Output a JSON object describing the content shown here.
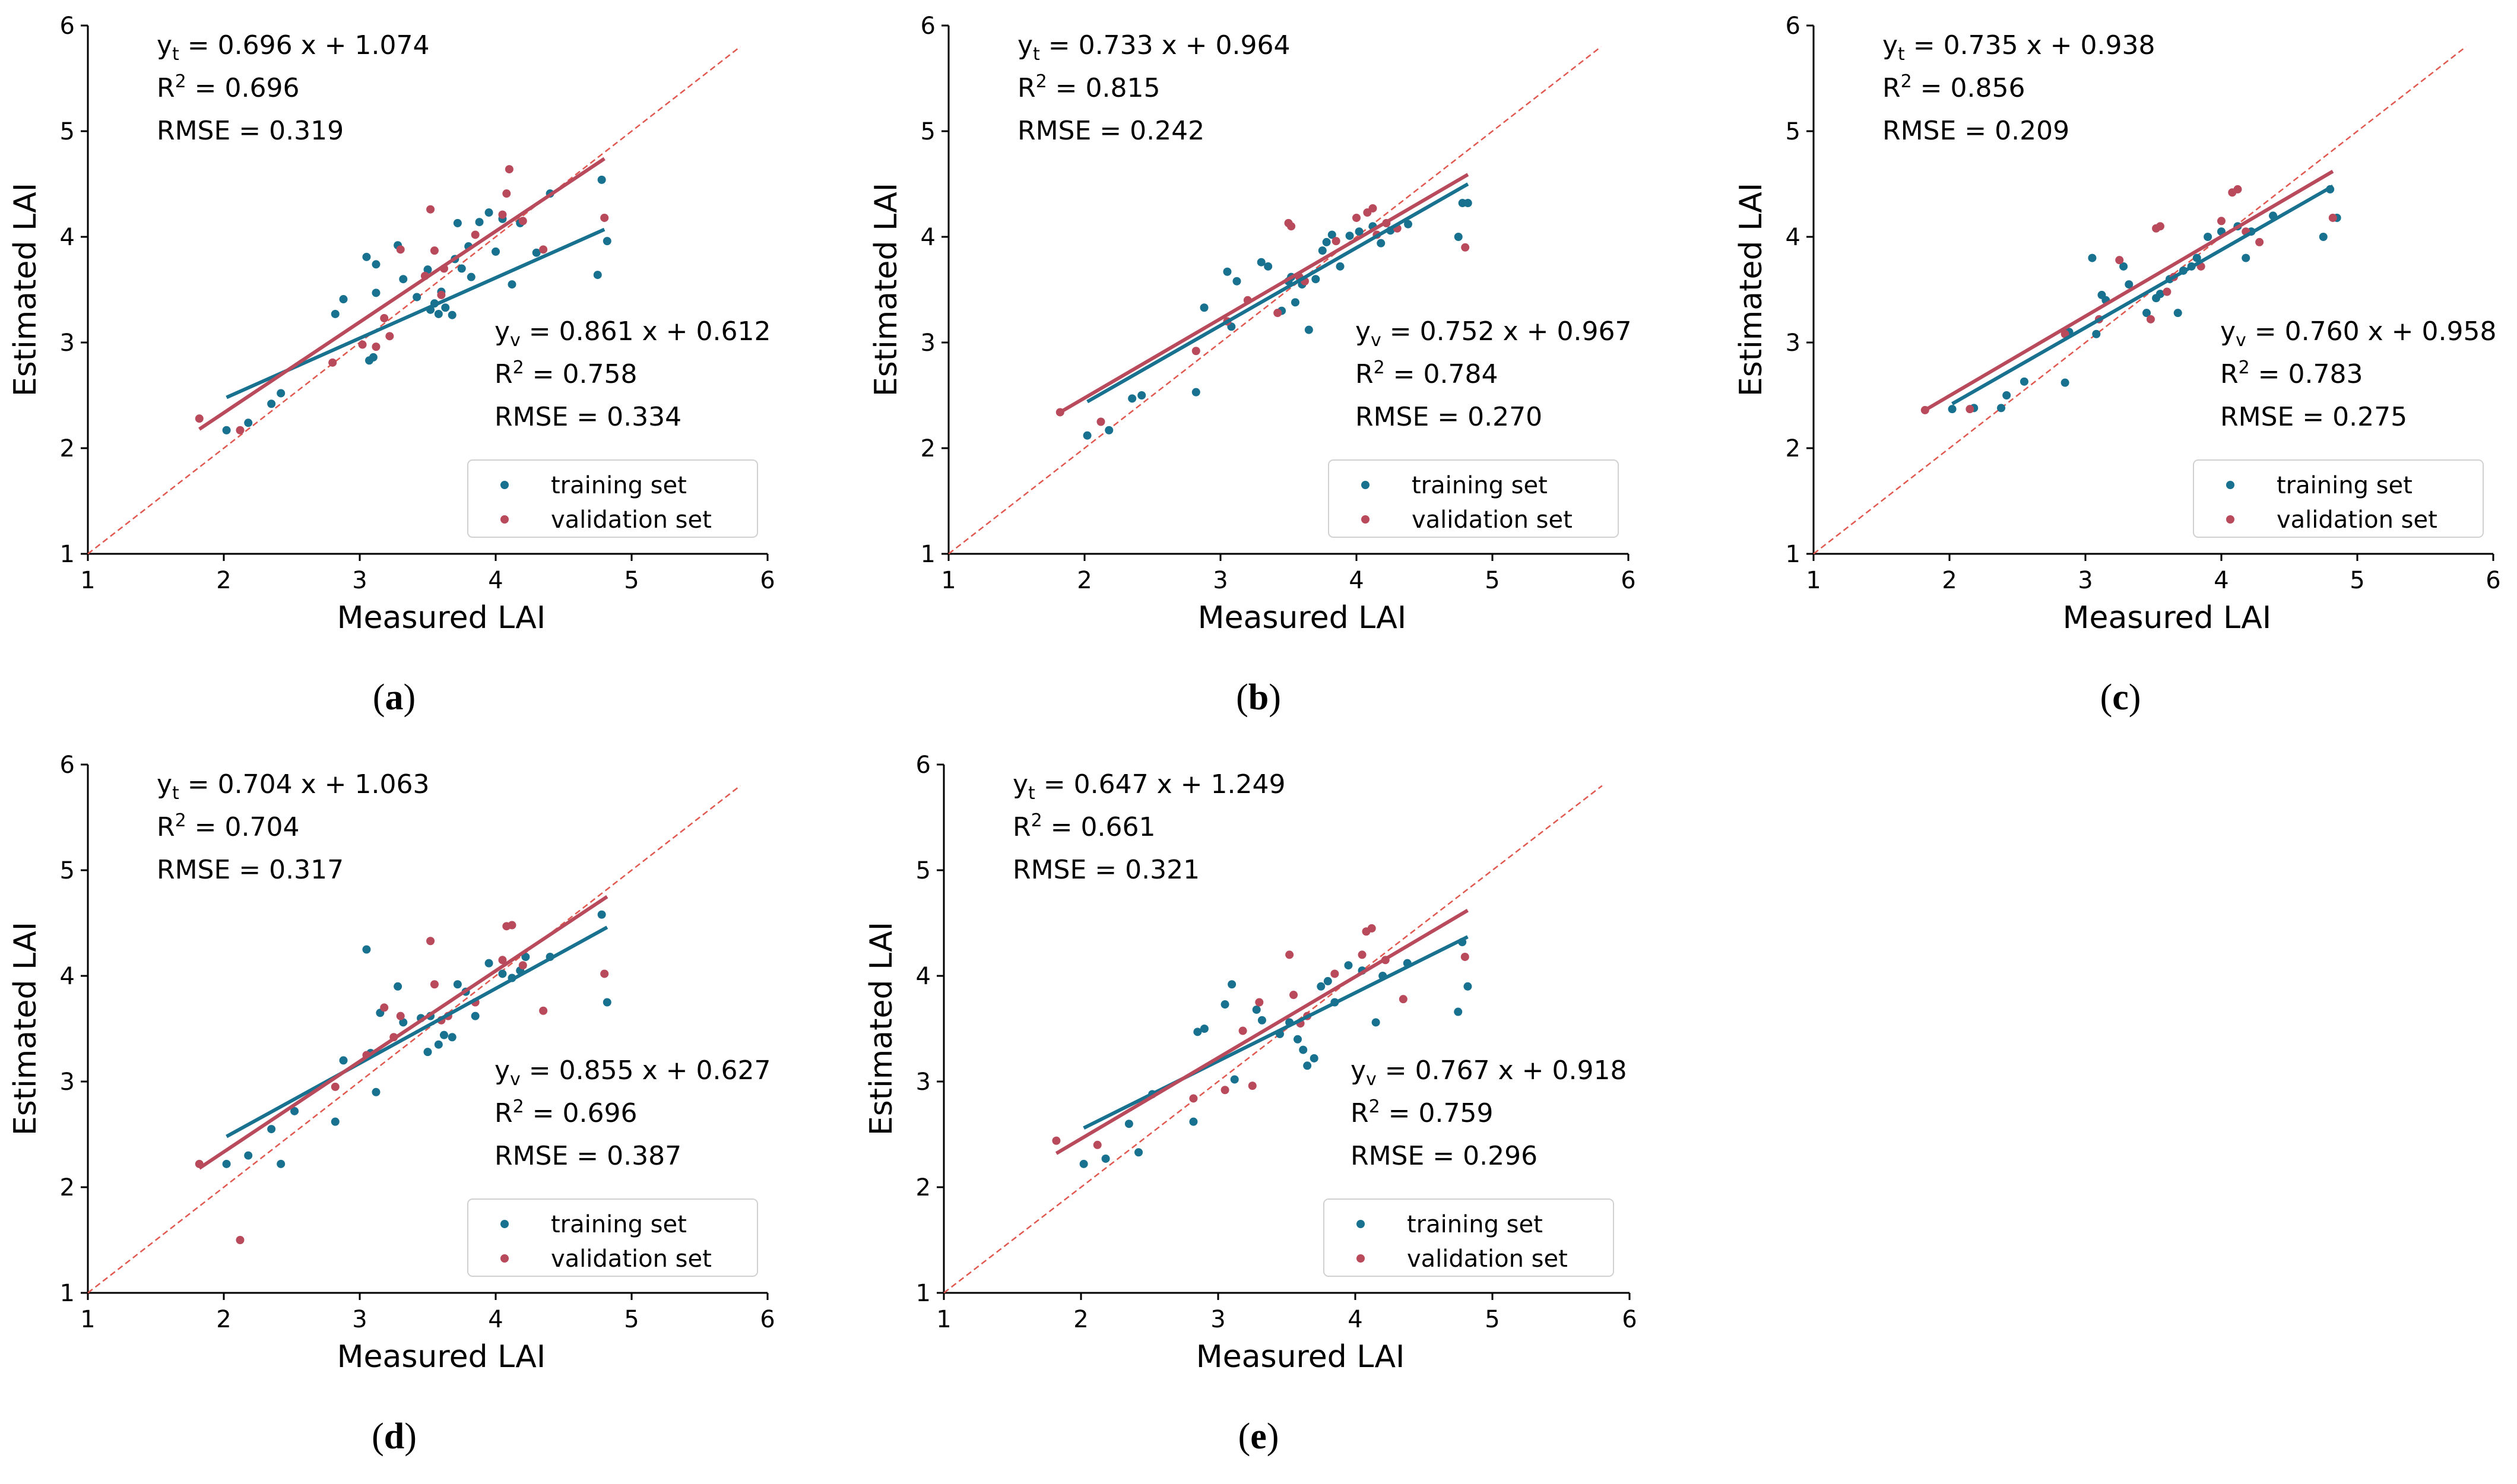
{
  "figure": {
    "panel_letters": [
      "a",
      "b",
      "c",
      "d",
      "e"
    ]
  },
  "colors": {
    "training": "#17718f",
    "validation": "#b84a5c",
    "identity": "#e0584f",
    "axis": "#000000"
  },
  "legend": {
    "training_label": "training set",
    "validation_label": "validation set"
  },
  "chart_data": [
    {
      "type": "scatter",
      "panel": "a",
      "xlabel": "Measured LAI",
      "ylabel": "Estimated LAI",
      "xlim": [
        1,
        6
      ],
      "ylim": [
        1,
        6
      ],
      "xticks": [
        1,
        2,
        3,
        4,
        5,
        6
      ],
      "yticks": [
        1,
        2,
        3,
        4,
        5,
        6
      ],
      "identity_line": [
        [
          1,
          1
        ],
        [
          5.8,
          5.8
        ]
      ],
      "training_eq": {
        "slope": "0.696",
        "intercept": "1.074",
        "r2": "0.696",
        "rmse": "0.319"
      },
      "validation_eq": {
        "slope": "0.861",
        "intercept": "0.612",
        "r2": "0.758",
        "rmse": "0.334"
      },
      "training_fit": [
        [
          2.02,
          2.48
        ],
        [
          4.8,
          4.07
        ]
      ],
      "validation_fit": [
        [
          1.82,
          2.18
        ],
        [
          4.8,
          4.74
        ]
      ],
      "training": [
        [
          2.02,
          2.17
        ],
        [
          2.18,
          2.24
        ],
        [
          2.35,
          2.42
        ],
        [
          2.42,
          2.52
        ],
        [
          2.82,
          3.27
        ],
        [
          2.88,
          3.41
        ],
        [
          3.05,
          3.81
        ],
        [
          3.07,
          2.83
        ],
        [
          3.1,
          2.86
        ],
        [
          3.12,
          3.74
        ],
        [
          3.12,
          3.47
        ],
        [
          3.28,
          3.92
        ],
        [
          3.32,
          3.6
        ],
        [
          3.42,
          3.43
        ],
        [
          3.5,
          3.69
        ],
        [
          3.52,
          3.31
        ],
        [
          3.55,
          3.37
        ],
        [
          3.58,
          3.27
        ],
        [
          3.6,
          3.48
        ],
        [
          3.63,
          3.33
        ],
        [
          3.68,
          3.26
        ],
        [
          3.7,
          3.79
        ],
        [
          3.72,
          4.13
        ],
        [
          3.75,
          3.7
        ],
        [
          3.8,
          3.91
        ],
        [
          3.82,
          3.62
        ],
        [
          3.88,
          4.14
        ],
        [
          3.95,
          4.23
        ],
        [
          4.0,
          3.86
        ],
        [
          4.05,
          4.17
        ],
        [
          4.12,
          3.55
        ],
        [
          4.18,
          4.13
        ],
        [
          4.3,
          3.85
        ],
        [
          4.4,
          4.41
        ],
        [
          4.75,
          3.64
        ],
        [
          4.78,
          4.54
        ],
        [
          4.82,
          3.96
        ]
      ],
      "validation": [
        [
          1.82,
          2.28
        ],
        [
          2.12,
          2.17
        ],
        [
          2.8,
          2.81
        ],
        [
          3.02,
          2.98
        ],
        [
          3.12,
          2.96
        ],
        [
          3.18,
          3.23
        ],
        [
          3.22,
          3.06
        ],
        [
          3.3,
          3.88
        ],
        [
          3.48,
          3.63
        ],
        [
          3.52,
          4.26
        ],
        [
          3.55,
          3.87
        ],
        [
          3.6,
          3.45
        ],
        [
          3.62,
          3.7
        ],
        [
          3.85,
          4.02
        ],
        [
          4.05,
          4.21
        ],
        [
          4.08,
          4.41
        ],
        [
          4.1,
          4.64
        ],
        [
          4.2,
          4.15
        ],
        [
          4.35,
          3.88
        ],
        [
          4.8,
          4.18
        ]
      ]
    },
    {
      "type": "scatter",
      "panel": "b",
      "xlabel": "Measured LAI",
      "ylabel": "Estimated LAI",
      "xlim": [
        1,
        6
      ],
      "ylim": [
        1,
        6
      ],
      "xticks": [
        1,
        2,
        3,
        4,
        5,
        6
      ],
      "yticks": [
        1,
        2,
        3,
        4,
        5,
        6
      ],
      "identity_line": [
        [
          1,
          1
        ],
        [
          5.8,
          5.8
        ]
      ],
      "training_eq": {
        "slope": "0.733",
        "intercept": "0.964",
        "r2": "0.815",
        "rmse": "0.242"
      },
      "validation_eq": {
        "slope": "0.752",
        "intercept": "0.967",
        "r2": "0.784",
        "rmse": "0.270"
      },
      "training_fit": [
        [
          2.02,
          2.44
        ],
        [
          4.82,
          4.5
        ]
      ],
      "validation_fit": [
        [
          1.82,
          2.34
        ],
        [
          4.82,
          4.59
        ]
      ],
      "training": [
        [
          2.02,
          2.12
        ],
        [
          2.18,
          2.17
        ],
        [
          2.35,
          2.47
        ],
        [
          2.42,
          2.5
        ],
        [
          2.82,
          2.53
        ],
        [
          2.88,
          3.33
        ],
        [
          3.05,
          3.67
        ],
        [
          3.08,
          3.15
        ],
        [
          3.12,
          3.58
        ],
        [
          3.3,
          3.76
        ],
        [
          3.35,
          3.72
        ],
        [
          3.45,
          3.3
        ],
        [
          3.5,
          3.58
        ],
        [
          3.52,
          3.62
        ],
        [
          3.55,
          3.38
        ],
        [
          3.6,
          3.55
        ],
        [
          3.65,
          3.12
        ],
        [
          3.7,
          3.6
        ],
        [
          3.75,
          3.87
        ],
        [
          3.78,
          3.95
        ],
        [
          3.82,
          4.02
        ],
        [
          3.88,
          3.72
        ],
        [
          3.95,
          4.01
        ],
        [
          4.02,
          4.05
        ],
        [
          4.12,
          4.1
        ],
        [
          4.18,
          3.94
        ],
        [
          4.25,
          4.06
        ],
        [
          4.38,
          4.12
        ],
        [
          4.75,
          4.0
        ],
        [
          4.78,
          4.32
        ],
        [
          4.82,
          4.32
        ]
      ],
      "validation": [
        [
          1.82,
          2.34
        ],
        [
          2.12,
          2.25
        ],
        [
          2.82,
          2.92
        ],
        [
          3.05,
          3.2
        ],
        [
          3.2,
          3.4
        ],
        [
          3.42,
          3.28
        ],
        [
          3.5,
          4.13
        ],
        [
          3.52,
          4.1
        ],
        [
          3.58,
          3.62
        ],
        [
          3.62,
          3.58
        ],
        [
          3.85,
          3.96
        ],
        [
          4.0,
          4.18
        ],
        [
          4.08,
          4.23
        ],
        [
          4.12,
          4.27
        ],
        [
          4.15,
          4.02
        ],
        [
          4.22,
          4.13
        ],
        [
          4.3,
          4.08
        ],
        [
          4.8,
          3.9
        ]
      ]
    },
    {
      "type": "scatter",
      "panel": "c",
      "xlabel": "Measured LAI",
      "ylabel": "Estimated LAI",
      "xlim": [
        1,
        6
      ],
      "ylim": [
        1,
        6
      ],
      "xticks": [
        1,
        2,
        3,
        4,
        5,
        6
      ],
      "yticks": [
        1,
        2,
        3,
        4,
        5,
        6
      ],
      "identity_line": [
        [
          1,
          1
        ],
        [
          5.8,
          5.8
        ]
      ],
      "training_eq": {
        "slope": "0.735",
        "intercept": "0.938",
        "r2": "0.856",
        "rmse": "0.209"
      },
      "validation_eq": {
        "slope": "0.760",
        "intercept": "0.958",
        "r2": "0.783",
        "rmse": "0.275"
      },
      "training_fit": [
        [
          2.02,
          2.42
        ],
        [
          4.82,
          4.48
        ]
      ],
      "validation_fit": [
        [
          1.82,
          2.36
        ],
        [
          4.82,
          4.62
        ]
      ],
      "training": [
        [
          2.02,
          2.37
        ],
        [
          2.18,
          2.38
        ],
        [
          2.38,
          2.38
        ],
        [
          2.42,
          2.5
        ],
        [
          2.55,
          2.63
        ],
        [
          2.85,
          2.62
        ],
        [
          2.88,
          3.1
        ],
        [
          3.05,
          3.8
        ],
        [
          3.08,
          3.08
        ],
        [
          3.12,
          3.45
        ],
        [
          3.15,
          3.4
        ],
        [
          3.28,
          3.72
        ],
        [
          3.32,
          3.55
        ],
        [
          3.45,
          3.28
        ],
        [
          3.52,
          3.42
        ],
        [
          3.55,
          3.46
        ],
        [
          3.62,
          3.6
        ],
        [
          3.68,
          3.28
        ],
        [
          3.72,
          3.68
        ],
        [
          3.78,
          3.72
        ],
        [
          3.82,
          3.8
        ],
        [
          3.9,
          4.0
        ],
        [
          4.0,
          4.05
        ],
        [
          4.12,
          4.1
        ],
        [
          4.18,
          3.8
        ],
        [
          4.22,
          4.05
        ],
        [
          4.38,
          4.2
        ],
        [
          4.75,
          4.0
        ],
        [
          4.8,
          4.45
        ],
        [
          4.85,
          4.18
        ]
      ],
      "validation": [
        [
          1.82,
          2.36
        ],
        [
          2.15,
          2.37
        ],
        [
          2.85,
          3.08
        ],
        [
          3.1,
          3.22
        ],
        [
          3.25,
          3.78
        ],
        [
          3.48,
          3.22
        ],
        [
          3.52,
          4.08
        ],
        [
          3.55,
          4.1
        ],
        [
          3.6,
          3.48
        ],
        [
          3.65,
          3.62
        ],
        [
          3.85,
          3.72
        ],
        [
          4.0,
          4.15
        ],
        [
          4.08,
          4.42
        ],
        [
          4.12,
          4.45
        ],
        [
          4.18,
          4.05
        ],
        [
          4.28,
          3.95
        ],
        [
          4.82,
          4.18
        ]
      ]
    },
    {
      "type": "scatter",
      "panel": "d",
      "xlabel": "Measured LAI",
      "ylabel": "Estimated LAI",
      "xlim": [
        1,
        6
      ],
      "ylim": [
        1,
        6
      ],
      "xticks": [
        1,
        2,
        3,
        4,
        5,
        6
      ],
      "yticks": [
        1,
        2,
        3,
        4,
        5,
        6
      ],
      "identity_line": [
        [
          1,
          1
        ],
        [
          5.8,
          5.8
        ]
      ],
      "training_eq": {
        "slope": "0.704",
        "intercept": "1.063",
        "r2": "0.704",
        "rmse": "0.317"
      },
      "validation_eq": {
        "slope": "0.855",
        "intercept": "0.627",
        "r2": "0.696",
        "rmse": "0.387"
      },
      "training_fit": [
        [
          2.02,
          2.48
        ],
        [
          4.82,
          4.46
        ]
      ],
      "validation_fit": [
        [
          1.82,
          2.18
        ],
        [
          4.82,
          4.75
        ]
      ],
      "training": [
        [
          2.02,
          2.22
        ],
        [
          2.18,
          2.3
        ],
        [
          2.35,
          2.55
        ],
        [
          2.42,
          2.22
        ],
        [
          2.52,
          2.72
        ],
        [
          2.82,
          2.62
        ],
        [
          2.88,
          3.2
        ],
        [
          3.05,
          4.25
        ],
        [
          3.08,
          3.27
        ],
        [
          3.12,
          2.9
        ],
        [
          3.15,
          3.65
        ],
        [
          3.28,
          3.9
        ],
        [
          3.32,
          3.56
        ],
        [
          3.45,
          3.6
        ],
        [
          3.5,
          3.28
        ],
        [
          3.52,
          3.62
        ],
        [
          3.58,
          3.35
        ],
        [
          3.62,
          3.44
        ],
        [
          3.68,
          3.42
        ],
        [
          3.72,
          3.92
        ],
        [
          3.78,
          3.85
        ],
        [
          3.85,
          3.62
        ],
        [
          3.95,
          4.12
        ],
        [
          4.05,
          4.02
        ],
        [
          4.12,
          3.98
        ],
        [
          4.18,
          4.05
        ],
        [
          4.22,
          4.18
        ],
        [
          4.4,
          4.18
        ],
        [
          4.78,
          4.58
        ],
        [
          4.82,
          3.75
        ]
      ],
      "validation": [
        [
          1.82,
          2.22
        ],
        [
          2.12,
          1.5
        ],
        [
          2.82,
          2.95
        ],
        [
          3.05,
          3.25
        ],
        [
          3.18,
          3.7
        ],
        [
          3.25,
          3.42
        ],
        [
          3.3,
          3.62
        ],
        [
          3.52,
          4.33
        ],
        [
          3.55,
          3.92
        ],
        [
          3.6,
          3.58
        ],
        [
          3.65,
          3.62
        ],
        [
          3.85,
          3.75
        ],
        [
          4.05,
          4.15
        ],
        [
          4.08,
          4.47
        ],
        [
          4.12,
          4.48
        ],
        [
          4.2,
          4.1
        ],
        [
          4.35,
          3.67
        ],
        [
          4.8,
          4.02
        ]
      ]
    },
    {
      "type": "scatter",
      "panel": "e",
      "xlabel": "Measured LAI",
      "ylabel": "Estimated LAI",
      "xlim": [
        1,
        6
      ],
      "ylim": [
        1,
        6
      ],
      "xticks": [
        1,
        2,
        3,
        4,
        5,
        6
      ],
      "yticks": [
        1,
        2,
        3,
        4,
        5,
        6
      ],
      "identity_line": [
        [
          1,
          1
        ],
        [
          5.8,
          5.8
        ]
      ],
      "training_eq": {
        "slope": "0.647",
        "intercept": "1.249",
        "r2": "0.661",
        "rmse": "0.321"
      },
      "validation_eq": {
        "slope": "0.767",
        "intercept": "0.918",
        "r2": "0.759",
        "rmse": "0.296"
      },
      "training_fit": [
        [
          2.02,
          2.56
        ],
        [
          4.82,
          4.37
        ]
      ],
      "validation_fit": [
        [
          1.82,
          2.32
        ],
        [
          4.82,
          4.62
        ]
      ],
      "training": [
        [
          2.02,
          2.22
        ],
        [
          2.18,
          2.27
        ],
        [
          2.35,
          2.6
        ],
        [
          2.42,
          2.33
        ],
        [
          2.52,
          2.88
        ],
        [
          2.82,
          2.62
        ],
        [
          2.85,
          3.47
        ],
        [
          2.9,
          3.5
        ],
        [
          3.05,
          3.73
        ],
        [
          3.1,
          3.92
        ],
        [
          3.12,
          3.02
        ],
        [
          3.28,
          3.68
        ],
        [
          3.32,
          3.58
        ],
        [
          3.45,
          3.45
        ],
        [
          3.52,
          3.56
        ],
        [
          3.58,
          3.4
        ],
        [
          3.62,
          3.3
        ],
        [
          3.65,
          3.15
        ],
        [
          3.7,
          3.22
        ],
        [
          3.75,
          3.9
        ],
        [
          3.8,
          3.95
        ],
        [
          3.85,
          3.75
        ],
        [
          3.95,
          4.1
        ],
        [
          4.05,
          4.05
        ],
        [
          4.15,
          3.56
        ],
        [
          4.2,
          4.0
        ],
        [
          4.38,
          4.12
        ],
        [
          4.75,
          3.66
        ],
        [
          4.78,
          4.32
        ],
        [
          4.82,
          3.9
        ]
      ],
      "validation": [
        [
          1.82,
          2.44
        ],
        [
          2.12,
          2.4
        ],
        [
          2.82,
          2.84
        ],
        [
          3.05,
          2.92
        ],
        [
          3.18,
          3.48
        ],
        [
          3.25,
          2.96
        ],
        [
          3.3,
          3.75
        ],
        [
          3.52,
          4.2
        ],
        [
          3.55,
          3.82
        ],
        [
          3.6,
          3.55
        ],
        [
          3.65,
          3.62
        ],
        [
          3.85,
          4.02
        ],
        [
          4.05,
          4.2
        ],
        [
          4.08,
          4.42
        ],
        [
          4.12,
          4.45
        ],
        [
          4.22,
          4.15
        ],
        [
          4.35,
          3.78
        ],
        [
          4.8,
          4.18
        ]
      ]
    }
  ]
}
